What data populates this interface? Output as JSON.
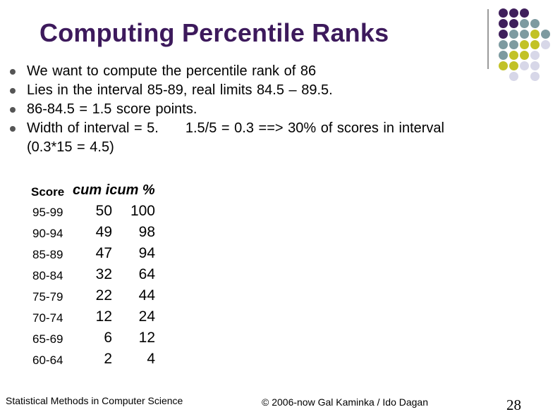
{
  "slide": {
    "title": "Computing Percentile Ranks",
    "bullets": [
      "We want to compute the percentile rank of 86",
      "Lies in the interval 85-89, real limits 84.5 – 89.5.",
      "86-84.5 = 1.5 score points."
    ],
    "last_bullet": {
      "part1": "Width of interval = 5.",
      "part2": "1.5/5 = 0.3  ==> 30% of scores in interval",
      "part3": "(0.3*15 = 4.5)"
    }
  },
  "table": {
    "header_score": "Score",
    "header_cum": "cum icum %",
    "rows": [
      {
        "score": "95-99",
        "cum": "50",
        "pct": "100"
      },
      {
        "score": "90-94",
        "cum": "49",
        "pct": "98"
      },
      {
        "score": "85-89",
        "cum": "47",
        "pct": "94"
      },
      {
        "score": "80-84",
        "cum": "32",
        "pct": "64"
      },
      {
        "score": "75-79",
        "cum": "22",
        "pct": "44"
      },
      {
        "score": "70-74",
        "cum": "12",
        "pct": "24"
      },
      {
        "score": "65-69",
        "cum": "6",
        "pct": "12"
      },
      {
        "score": "60-64",
        "cum": "2",
        "pct": "4"
      }
    ]
  },
  "footer": {
    "course": "Statistical Methods in Computer Science",
    "copyright": "© 2006-now  Gal Kaminka / Ido Dagan",
    "page_number": "28"
  },
  "theme": {
    "title_color": "#3d1a5c",
    "dot_colors": {
      "purple": "#3f1f5b",
      "slate": "#7d9aa0",
      "olive": "#c2c227",
      "lavender": "#d7d7e8"
    }
  }
}
